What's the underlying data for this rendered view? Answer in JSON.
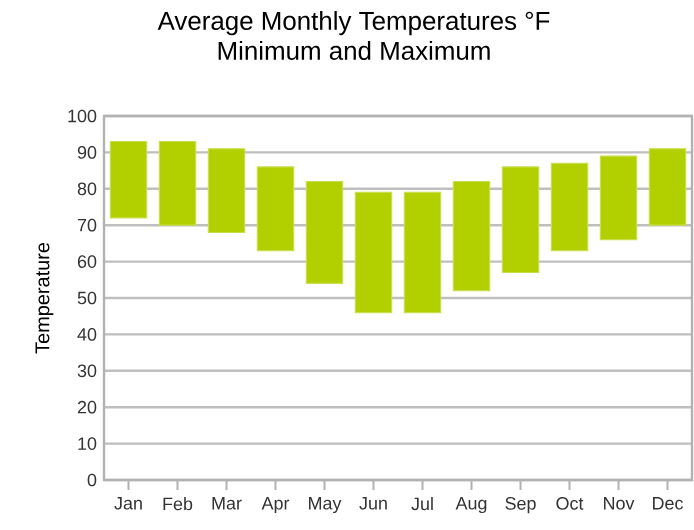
{
  "chart_data": {
    "type": "bar",
    "title": "Average Monthly Temperatures °F",
    "subtitle": "Minimum and Maximum",
    "ylabel": "Temperature",
    "categories": [
      "Jan",
      "Feb",
      "Mar",
      "Apr",
      "May",
      "Jun",
      "Jul",
      "Aug",
      "Sep",
      "Oct",
      "Nov",
      "Dec"
    ],
    "base": [
      72,
      70,
      68,
      63,
      54,
      46,
      46,
      52,
      57,
      63,
      66,
      70
    ],
    "values": [
      21,
      23,
      23,
      23,
      28,
      33,
      33,
      30,
      29,
      24,
      23,
      21
    ],
    "color": "#b2d000",
    "ylim": [
      0,
      100
    ],
    "yticks": [
      0,
      10,
      20,
      30,
      40,
      50,
      60,
      70,
      80,
      90,
      100
    ],
    "grid": "y"
  }
}
